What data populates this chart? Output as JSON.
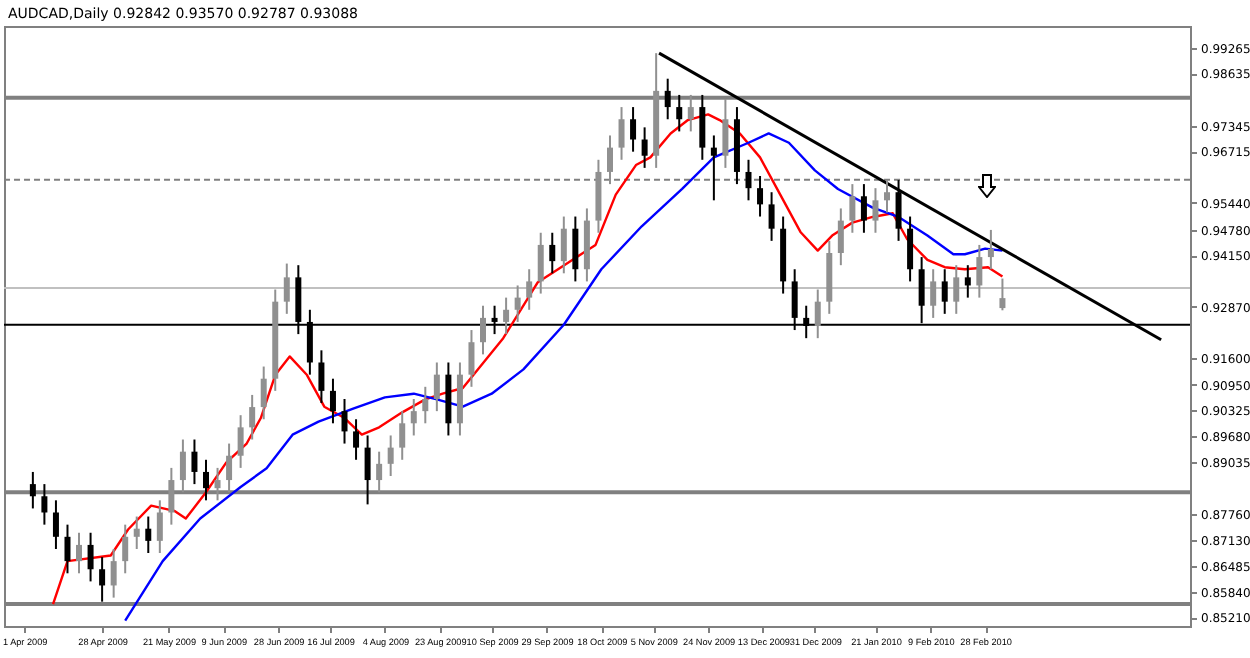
{
  "chart_data": {
    "type": "candlestick",
    "title": "AUDCAD,Daily  0.92842 0.93570 0.92787 0.93088",
    "x": [
      "2009-04-04",
      "2009-04-08",
      "2009-04-12",
      "2009-04-16",
      "2009-04-20",
      "2009-04-24",
      "2009-04-28",
      "2009-05-02",
      "2009-05-06",
      "2009-05-10",
      "2009-05-14",
      "2009-05-18",
      "2009-05-22",
      "2009-05-26",
      "2009-05-30",
      "2009-06-03",
      "2009-06-07",
      "2009-06-11",
      "2009-06-15",
      "2009-06-19",
      "2009-06-23",
      "2009-06-27",
      "2009-07-01",
      "2009-07-05",
      "2009-07-09",
      "2009-07-13",
      "2009-07-17",
      "2009-07-21",
      "2009-07-25",
      "2009-07-29",
      "2009-08-02",
      "2009-08-06",
      "2009-08-10",
      "2009-08-14",
      "2009-08-18",
      "2009-08-22",
      "2009-08-26",
      "2009-08-30",
      "2009-09-03",
      "2009-09-07",
      "2009-09-11",
      "2009-09-15",
      "2009-09-19",
      "2009-09-23",
      "2009-09-27",
      "2009-10-01",
      "2009-10-05",
      "2009-10-09",
      "2009-10-13",
      "2009-10-17",
      "2009-10-21",
      "2009-10-25",
      "2009-10-29",
      "2009-11-02",
      "2009-11-06",
      "2009-11-10",
      "2009-11-14",
      "2009-11-18",
      "2009-11-22",
      "2009-11-26",
      "2009-11-30",
      "2009-12-04",
      "2009-12-08",
      "2009-12-12",
      "2009-12-16",
      "2009-12-20",
      "2009-12-24",
      "2009-12-28",
      "2010-01-01",
      "2010-01-05",
      "2010-01-09",
      "2010-01-13",
      "2010-01-17",
      "2010-01-21",
      "2010-01-25",
      "2010-01-29",
      "2010-02-02",
      "2010-02-06",
      "2010-02-10",
      "2010-02-14",
      "2010-02-18",
      "2010-02-22",
      "2010-02-26",
      "2010-03-02",
      "2010-03-06"
    ],
    "ohlc": [
      [
        0.885,
        0.888,
        0.879,
        0.882
      ],
      [
        0.882,
        0.885,
        0.875,
        0.878
      ],
      [
        0.878,
        0.881,
        0.869,
        0.872
      ],
      [
        0.872,
        0.875,
        0.863,
        0.866
      ],
      [
        0.866,
        0.873,
        0.863,
        0.87
      ],
      [
        0.87,
        0.873,
        0.861,
        0.864
      ],
      [
        0.864,
        0.867,
        0.856,
        0.86
      ],
      [
        0.86,
        0.869,
        0.857,
        0.866
      ],
      [
        0.866,
        0.875,
        0.863,
        0.872
      ],
      [
        0.872,
        0.877,
        0.869,
        0.874
      ],
      [
        0.874,
        0.877,
        0.868,
        0.871
      ],
      [
        0.871,
        0.881,
        0.868,
        0.878
      ],
      [
        0.878,
        0.889,
        0.875,
        0.886
      ],
      [
        0.886,
        0.896,
        0.883,
        0.893
      ],
      [
        0.893,
        0.896,
        0.885,
        0.888
      ],
      [
        0.888,
        0.891,
        0.881,
        0.884
      ],
      [
        0.884,
        0.889,
        0.881,
        0.886
      ],
      [
        0.886,
        0.895,
        0.883,
        0.892
      ],
      [
        0.892,
        0.902,
        0.889,
        0.899
      ],
      [
        0.899,
        0.907,
        0.896,
        0.904
      ],
      [
        0.904,
        0.914,
        0.901,
        0.911
      ],
      [
        0.911,
        0.933,
        0.908,
        0.93
      ],
      [
        0.93,
        0.9394,
        0.927,
        0.936
      ],
      [
        0.936,
        0.939,
        0.922,
        0.925
      ],
      [
        0.925,
        0.928,
        0.912,
        0.915
      ],
      [
        0.915,
        0.918,
        0.905,
        0.908
      ],
      [
        0.908,
        0.911,
        0.9,
        0.903
      ],
      [
        0.903,
        0.906,
        0.895,
        0.898
      ],
      [
        0.898,
        0.901,
        0.891,
        0.894
      ],
      [
        0.894,
        0.897,
        0.88,
        0.886
      ],
      [
        0.886,
        0.893,
        0.883,
        0.89
      ],
      [
        0.89,
        0.897,
        0.887,
        0.894
      ],
      [
        0.894,
        0.903,
        0.891,
        0.9
      ],
      [
        0.9,
        0.906,
        0.897,
        0.903
      ],
      [
        0.903,
        0.909,
        0.9,
        0.906
      ],
      [
        0.906,
        0.915,
        0.903,
        0.912
      ],
      [
        0.912,
        0.915,
        0.897,
        0.9
      ],
      [
        0.9,
        0.915,
        0.897,
        0.912
      ],
      [
        0.912,
        0.923,
        0.909,
        0.92
      ],
      [
        0.92,
        0.929,
        0.917,
        0.926
      ],
      [
        0.926,
        0.929,
        0.922,
        0.925
      ],
      [
        0.925,
        0.931,
        0.922,
        0.928
      ],
      [
        0.928,
        0.934,
        0.925,
        0.931
      ],
      [
        0.931,
        0.938,
        0.928,
        0.935
      ],
      [
        0.935,
        0.947,
        0.932,
        0.944
      ],
      [
        0.944,
        0.947,
        0.937,
        0.94
      ],
      [
        0.94,
        0.951,
        0.937,
        0.948
      ],
      [
        0.948,
        0.951,
        0.935,
        0.938
      ],
      [
        0.938,
        0.953,
        0.935,
        0.95
      ],
      [
        0.95,
        0.965,
        0.947,
        0.962
      ],
      [
        0.962,
        0.971,
        0.959,
        0.968
      ],
      [
        0.968,
        0.978,
        0.965,
        0.975
      ],
      [
        0.975,
        0.978,
        0.967,
        0.97
      ],
      [
        0.97,
        0.973,
        0.963,
        0.966
      ],
      [
        0.966,
        0.9913,
        0.963,
        0.982
      ],
      [
        0.982,
        0.985,
        0.975,
        0.978
      ],
      [
        0.978,
        0.981,
        0.972,
        0.975
      ],
      [
        0.975,
        0.981,
        0.972,
        0.978
      ],
      [
        0.978,
        0.981,
        0.965,
        0.968
      ],
      [
        0.968,
        0.971,
        0.955,
        0.966
      ],
      [
        0.966,
        0.98,
        0.963,
        0.975
      ],
      [
        0.975,
        0.978,
        0.959,
        0.962
      ],
      [
        0.962,
        0.965,
        0.955,
        0.958
      ],
      [
        0.958,
        0.961,
        0.951,
        0.954
      ],
      [
        0.954,
        0.957,
        0.945,
        0.948
      ],
      [
        0.948,
        0.951,
        0.932,
        0.935
      ],
      [
        0.935,
        0.938,
        0.923,
        0.926
      ],
      [
        0.926,
        0.929,
        0.921,
        0.924
      ],
      [
        0.924,
        0.933,
        0.921,
        0.93
      ],
      [
        0.93,
        0.945,
        0.927,
        0.942
      ],
      [
        0.942,
        0.953,
        0.939,
        0.95
      ],
      [
        0.95,
        0.959,
        0.947,
        0.956
      ],
      [
        0.956,
        0.959,
        0.947,
        0.95
      ],
      [
        0.95,
        0.958,
        0.947,
        0.955
      ],
      [
        0.955,
        0.96,
        0.952,
        0.957
      ],
      [
        0.957,
        0.96,
        0.945,
        0.948
      ],
      [
        0.948,
        0.951,
        0.935,
        0.938
      ],
      [
        0.938,
        0.941,
        0.9247,
        0.929
      ],
      [
        0.929,
        0.938,
        0.926,
        0.935
      ],
      [
        0.935,
        0.938,
        0.927,
        0.93
      ],
      [
        0.93,
        0.939,
        0.927,
        0.936
      ],
      [
        0.936,
        0.939,
        0.931,
        0.934
      ],
      [
        0.934,
        0.944,
        0.931,
        0.941
      ],
      [
        0.941,
        0.9477,
        0.938,
        0.943
      ],
      [
        0.92842,
        0.9357,
        0.92787,
        0.93088
      ]
    ],
    "colors": [
      "#000000",
      "#000000",
      "#000000",
      "#000000",
      "#909090",
      "#000000",
      "#000000",
      "#909090",
      "#909090",
      "#909090",
      "#000000",
      "#909090",
      "#909090",
      "#909090",
      "#000000",
      "#000000",
      "#909090",
      "#909090",
      "#909090",
      "#909090",
      "#909090",
      "#909090",
      "#909090",
      "#000000",
      "#000000",
      "#000000",
      "#000000",
      "#000000",
      "#000000",
      "#000000",
      "#909090",
      "#909090",
      "#909090",
      "#909090",
      "#909090",
      "#909090",
      "#000000",
      "#909090",
      "#909090",
      "#909090",
      "#000000",
      "#909090",
      "#909090",
      "#909090",
      "#909090",
      "#000000",
      "#909090",
      "#000000",
      "#909090",
      "#909090",
      "#909090",
      "#909090",
      "#000000",
      "#000000",
      "#909090",
      "#000000",
      "#000000",
      "#909090",
      "#000000",
      "#000000",
      "#909090",
      "#000000",
      "#000000",
      "#000000",
      "#000000",
      "#000000",
      "#000000",
      "#000000",
      "#909090",
      "#909090",
      "#909090",
      "#909090",
      "#000000",
      "#909090",
      "#909090",
      "#000000",
      "#000000",
      "#000000",
      "#909090",
      "#000000",
      "#909090",
      "#000000",
      "#909090",
      "#909090",
      "#909090"
    ],
    "series": [
      {
        "type": "line",
        "color": "#ff0000",
        "x": [
          "2009-04-11",
          "2009-04-16",
          "2009-05-01",
          "2009-05-07",
          "2009-05-15",
          "2009-05-23",
          "2009-05-27",
          "2009-06-03",
          "2009-06-10",
          "2009-06-17",
          "2009-06-22",
          "2009-06-27",
          "2009-07-02",
          "2009-07-08",
          "2009-07-14",
          "2009-07-21",
          "2009-07-27",
          "2009-08-02",
          "2009-08-10",
          "2009-08-18",
          "2009-08-24",
          "2009-08-31",
          "2009-09-14",
          "2009-09-26",
          "2009-10-03",
          "2009-10-09",
          "2009-10-16",
          "2009-10-23",
          "2009-10-30",
          "2009-11-04",
          "2009-11-11",
          "2009-11-17",
          "2009-11-24",
          "2009-11-28",
          "2009-12-05",
          "2009-12-12",
          "2009-12-19",
          "2009-12-26",
          "2010-01-01",
          "2010-01-06",
          "2010-01-13",
          "2010-01-20",
          "2010-01-27",
          "2010-02-01",
          "2010-02-08",
          "2010-02-14",
          "2010-02-21",
          "2010-03-01",
          "2010-03-06"
        ],
        "values": [
          0.8554,
          0.866,
          0.8674,
          0.8738,
          0.8797,
          0.8784,
          0.8765,
          0.883,
          0.8903,
          0.8949,
          0.9013,
          0.9119,
          0.9165,
          0.9119,
          0.9041,
          0.9013,
          0.8972,
          0.899,
          0.9027,
          0.9059,
          0.9073,
          0.9087,
          0.921,
          0.9348,
          0.938,
          0.9408,
          0.944,
          0.9564,
          0.9637,
          0.9656,
          0.9715,
          0.9748,
          0.9762,
          0.9748,
          0.9715,
          0.9656,
          0.9564,
          0.9472,
          0.9426,
          0.9463,
          0.9495,
          0.9509,
          0.9518,
          0.9454,
          0.9403,
          0.9385,
          0.938,
          0.9385,
          0.9362
        ]
      },
      {
        "type": "line",
        "color": "#0000ff",
        "x": [
          "2009-05-06",
          "2009-05-19",
          "2009-06-01",
          "2009-06-15",
          "2009-06-24",
          "2009-07-03",
          "2009-07-12",
          "2009-07-24",
          "2009-08-04",
          "2009-08-14",
          "2009-08-22",
          "2009-08-31",
          "2009-09-10",
          "2009-09-21",
          "2009-10-05",
          "2009-10-18",
          "2009-11-01",
          "2009-11-15",
          "2009-11-26",
          "2009-12-08",
          "2009-12-15",
          "2009-12-22",
          "2009-12-31",
          "2010-01-08",
          "2010-01-20",
          "2010-01-29",
          "2010-02-08",
          "2010-02-17",
          "2010-02-21",
          "2010-02-28",
          "2010-03-06"
        ],
        "values": [
          0.8513,
          0.866,
          0.8765,
          0.8843,
          0.8889,
          0.8972,
          0.9004,
          0.9036,
          0.9064,
          0.9073,
          0.9059,
          0.9041,
          0.9073,
          0.9133,
          0.9243,
          0.938,
          0.9486,
          0.9578,
          0.9656,
          0.9692,
          0.9715,
          0.9692,
          0.9624,
          0.9578,
          0.9532,
          0.9509,
          0.9463,
          0.9417,
          0.9417,
          0.9431,
          0.9426
        ]
      },
      {
        "type": "line",
        "color": "#000000",
        "x": [
          "2009-11-07",
          "2010-04-30"
        ],
        "values": [
          0.9913,
          0.9206
        ]
      }
    ],
    "xlim": [
      "2009-03-25",
      "2010-05-10"
    ],
    "xticks": [
      {
        "value": "2009-04-01",
        "label": "1 Apr 2009"
      },
      {
        "value": "2009-04-28",
        "label": "28 Apr 2009"
      },
      {
        "value": "2009-05-21",
        "label": "21 May 2009"
      },
      {
        "value": "2009-06-09",
        "label": "9 Jun 2009"
      },
      {
        "value": "2009-06-28",
        "label": "28 Jun 2009"
      },
      {
        "value": "2009-07-16",
        "label": "16 Jul 2009"
      },
      {
        "value": "2009-08-04",
        "label": "4 Aug 2009"
      },
      {
        "value": "2009-08-23",
        "label": "23 Aug 2009"
      },
      {
        "value": "2009-09-10",
        "label": "10 Sep 2009"
      },
      {
        "value": "2009-09-29",
        "label": "29 Sep 2009"
      },
      {
        "value": "2009-10-18",
        "label": "18 Oct 2009"
      },
      {
        "value": "2009-11-05",
        "label": "5 Nov 2009"
      },
      {
        "value": "2009-11-24",
        "label": "24 Nov 2009"
      },
      {
        "value": "2009-12-13",
        "label": "13 Dec 2009"
      },
      {
        "value": "2009-12-31",
        "label": "31 Dec 2009"
      },
      {
        "value": "2010-01-21",
        "label": "21 Jan 2010"
      },
      {
        "value": "2010-02-09",
        "label": "9 Feb 2010"
      },
      {
        "value": "2010-02-28",
        "label": "28 Feb 2010"
      }
    ],
    "ylim": [
      0.85,
      0.998
    ],
    "yticks": [
      {
        "value": 0.99265,
        "label": "0.99265"
      },
      {
        "value": 0.98635,
        "label": "0.98635"
      },
      {
        "value": 0.97345,
        "label": "0.97345"
      },
      {
        "value": 0.96715,
        "label": "0.96715"
      },
      {
        "value": 0.9544,
        "label": "0.95440"
      },
      {
        "value": 0.9478,
        "label": "0.94780"
      },
      {
        "value": 0.9415,
        "label": "0.94150"
      },
      {
        "value": 0.9287,
        "label": "0.92870"
      },
      {
        "value": 0.916,
        "label": "0.91600"
      },
      {
        "value": 0.9095,
        "label": "0.90950"
      },
      {
        "value": 0.90325,
        "label": "0.90325"
      },
      {
        "value": 0.8968,
        "label": "0.89680"
      },
      {
        "value": 0.89035,
        "label": "0.89035"
      },
      {
        "value": 0.8776,
        "label": "0.87760"
      },
      {
        "value": 0.8713,
        "label": "0.87130"
      },
      {
        "value": 0.86485,
        "label": "0.86485"
      },
      {
        "value": 0.8584,
        "label": "0.85840"
      },
      {
        "value": 0.8521,
        "label": "0.85210"
      }
    ],
    "ref_lines": [
      {
        "axis": "y",
        "value": 0.9803,
        "color": "#808080",
        "line_style": "solid"
      },
      {
        "axis": "y",
        "value": 0.9601,
        "color": "#808080",
        "line_style": "dashed"
      },
      {
        "axis": "y",
        "value": 0.9334,
        "color": "#c0c0c0",
        "line_style": "solid"
      },
      {
        "axis": "y",
        "value": 0.9243,
        "color": "#000000",
        "line_style": "solid"
      },
      {
        "axis": "y",
        "value": 0.883,
        "color": "#808080",
        "line_style": "solid"
      },
      {
        "axis": "y",
        "value": 0.8554,
        "color": "#808080",
        "line_style": "solid"
      }
    ]
  }
}
